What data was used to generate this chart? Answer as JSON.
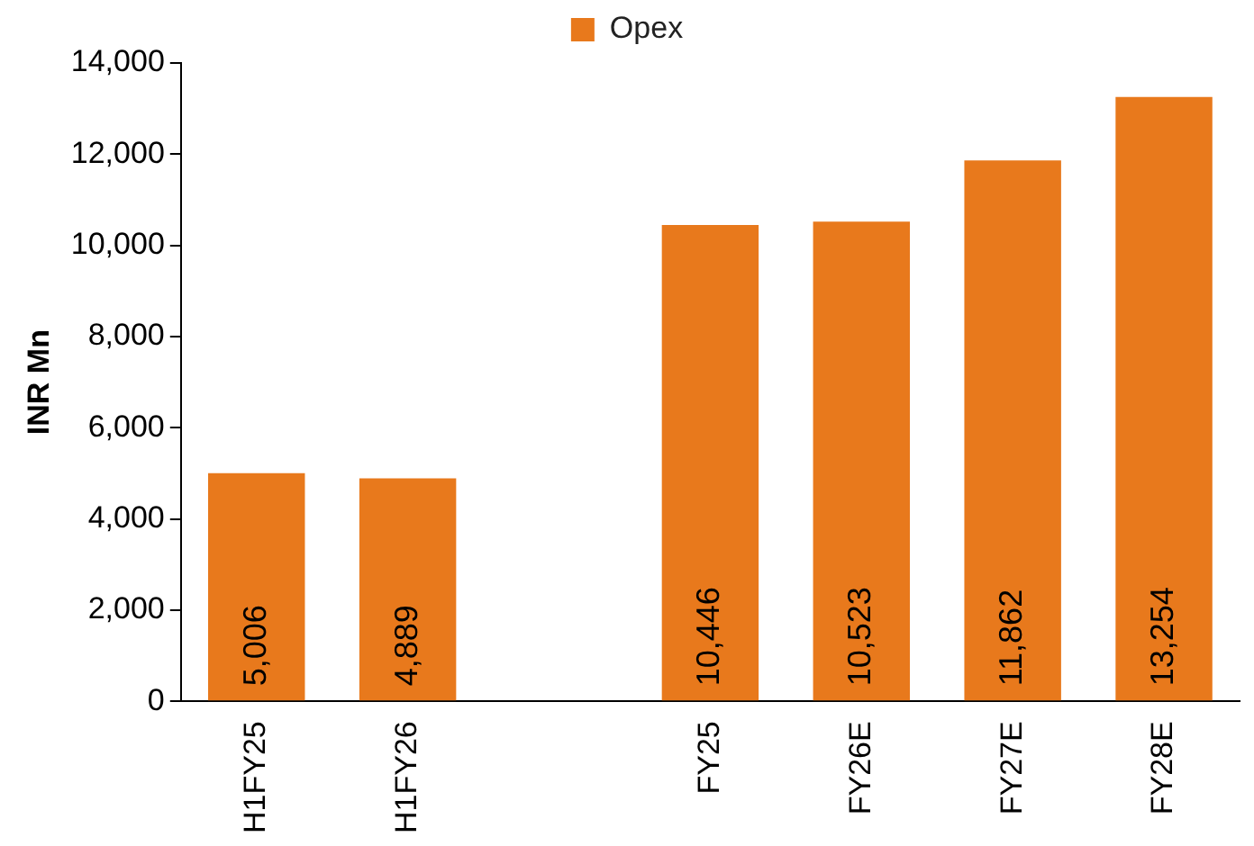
{
  "chart_data": {
    "type": "bar",
    "ylabel": "INR Mn",
    "categories": [
      "H1FY25",
      "H1FY26",
      null,
      "FY25",
      "FY26E",
      "FY27E",
      "FY28E"
    ],
    "series": [
      {
        "name": "Opex",
        "color": "#e8791c",
        "values": [
          5006,
          4889,
          null,
          10446,
          10523,
          11862,
          13254
        ],
        "value_labels": [
          "5,006",
          "4,889",
          null,
          "10,446",
          "10,523",
          "11,862",
          "13,254"
        ]
      }
    ],
    "ylim": [
      0,
      14000
    ],
    "yticks": [
      {
        "value": 0,
        "label": "0"
      },
      {
        "value": 2000,
        "label": "2,000"
      },
      {
        "value": 4000,
        "label": "4,000"
      },
      {
        "value": 6000,
        "label": "6,000"
      },
      {
        "value": 8000,
        "label": "8,000"
      },
      {
        "value": 10000,
        "label": "10,000"
      },
      {
        "value": 12000,
        "label": "12,000"
      },
      {
        "value": 14000,
        "label": "14,000"
      }
    ],
    "grid": false,
    "legend": "top"
  }
}
